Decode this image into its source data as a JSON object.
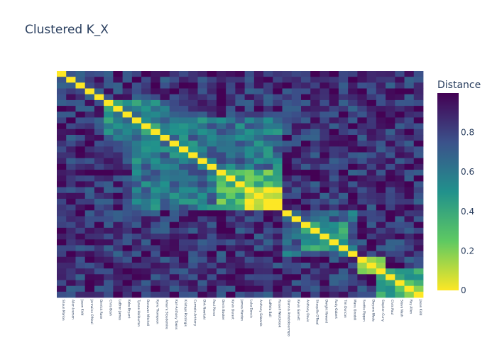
{
  "chart_data": {
    "type": "heatmap",
    "title": "Clustered K_X",
    "colorbar": {
      "title": "Distance",
      "ticks": [
        0,
        0.2,
        0.4,
        0.6,
        0.8
      ],
      "tick_labels": [
        "0",
        "0.2",
        "0.4",
        "0.6",
        "0.8"
      ],
      "range": [
        0,
        1
      ],
      "colorscale": [
        "#fde725",
        "#5ec962",
        "#21918c",
        "#3b528b",
        "#440154"
      ]
    },
    "x_labels": [
      "Shaun Marion",
      "Allen Iverson",
      "Jason Kidd",
      "Jermaine O'Neal",
      "Derrick Rose",
      "Chris Bosh",
      "LeBron James",
      "Kobe Bryant",
      "Tyrone Haliburton",
      "Donovan Mitchell",
      "Kyrie Thompson",
      "Amar'e Stoudemire",
      "Karl-Anthony Towns",
      "Kristaps Porzingis",
      "Carmelo Anthony",
      "Dirk Nowitzki",
      "Paul Pierce",
      "Devin Booker",
      "Kevin Durant",
      "James Harden",
      "Luka Doncic",
      "Anthony Edwards",
      "LaMelo Ball",
      "Russell Westbrook",
      "Giannis Antetokounmpo",
      "Kevin Garnett",
      "Anthony Davis",
      "Shaquille O'Neal",
      "Dwight Howard",
      "Rudy Gobert",
      "Tim Duncan",
      "Manu Ginobili",
      "Scottie Pippen",
      "Dwyane Wade",
      "Stephen Curry",
      "Chris Paul",
      "Steve Nash",
      "Ray Allen",
      "Jason Kidd"
    ],
    "cluster_blocks": [
      {
        "start": 5,
        "end": 11,
        "level": 0.55
      },
      {
        "start": 8,
        "end": 23,
        "level": 0.62
      },
      {
        "start": 17,
        "end": 23,
        "level": 0.35
      },
      {
        "start": 20,
        "end": 23,
        "level": 0.08
      },
      {
        "start": 24,
        "end": 31,
        "level": 0.65
      },
      {
        "start": 26,
        "end": 30,
        "level": 0.5
      },
      {
        "start": 32,
        "end": 34,
        "level": 0.05
      },
      {
        "start": 34,
        "end": 39,
        "level": 0.5
      },
      {
        "start": 36,
        "end": 39,
        "level": 0.2
      }
    ],
    "off_block_level": 0.85,
    "diagonal_value": 0
  }
}
